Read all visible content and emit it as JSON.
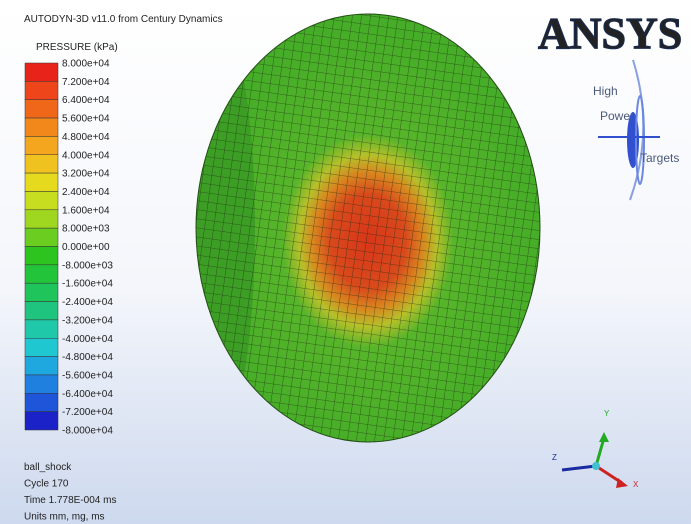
{
  "header": {
    "title": "AUTODYN-3D v11.0 from Century Dynamics"
  },
  "legend": {
    "title": "PRESSURE (kPa)",
    "labels": [
      "8.000e+04",
      "7.200e+04",
      "6.400e+04",
      "5.600e+04",
      "4.800e+04",
      "4.000e+04",
      "3.200e+04",
      "2.400e+04",
      "1.600e+04",
      "8.000e+03",
      "0.000e+00",
      "-8.000e+03",
      "-1.600e+04",
      "-2.400e+04",
      "-3.200e+04",
      "-4.000e+04",
      "-4.800e+04",
      "-5.600e+04",
      "-6.400e+04",
      "-7.200e+04",
      "-8.000e+04"
    ]
  },
  "info": [
    "ball_shock",
    "Cycle 170",
    "Time 1.778E-004 ms",
    "Units mm, mg, ms"
  ],
  "logo": {
    "text": "ANSYS",
    "icon": [
      "High",
      "Power",
      "Targets"
    ]
  },
  "axes": {
    "y": "Y",
    "z": "Z",
    "x": "X"
  }
}
